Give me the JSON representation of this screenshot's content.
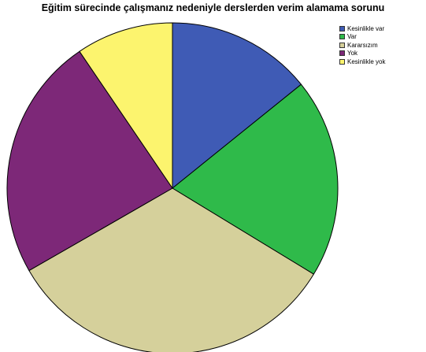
{
  "chart_data": {
    "type": "pie",
    "title": "Eğitim sürecinde çalışmanız nedeniyle derslerden verim alamama sorunu",
    "categories": [
      "Kesinlikle var",
      "Var",
      "Kararsızım",
      "Yok",
      "Kesinlikle yok"
    ],
    "values": [
      14.2,
      19.5,
      33.0,
      23.8,
      9.5
    ],
    "colors": [
      "#3f5bb5",
      "#2fba4a",
      "#d5d09b",
      "#7d2878",
      "#fcf46e"
    ],
    "start_angle_deg": 0,
    "direction": "clockwise",
    "legend_position": "top-right"
  }
}
